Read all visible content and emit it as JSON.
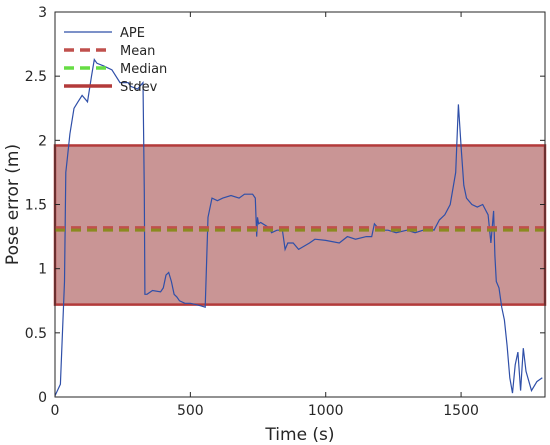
{
  "chart_data": {
    "type": "line",
    "title": "",
    "xlabel": "Time (s)",
    "ylabel": "Pose error (m)",
    "xlim": [
      0,
      1810
    ],
    "ylim": [
      0,
      3
    ],
    "xticks": [
      0,
      500,
      1000,
      1500
    ],
    "yticks": [
      0,
      0.5,
      1,
      1.5,
      2,
      2.5,
      3
    ],
    "grid": false,
    "legend_position": "top-left",
    "series": [
      {
        "name": "APE",
        "color": "#2f4fa8",
        "x": [
          0,
          20,
          35,
          40,
          45,
          55,
          70,
          85,
          100,
          120,
          135,
          145,
          155,
          180,
          210,
          240,
          250,
          270,
          280,
          305,
          325,
          330,
          332,
          340,
          360,
          390,
          400,
          410,
          420,
          430,
          440,
          450,
          460,
          480,
          500,
          520,
          540,
          555,
          565,
          580,
          600,
          620,
          650,
          680,
          700,
          730,
          740,
          745,
          748,
          752,
          760,
          790,
          800,
          820,
          840,
          850,
          860,
          880,
          900,
          940,
          960,
          1000,
          1050,
          1080,
          1110,
          1150,
          1170,
          1180,
          1200,
          1230,
          1260,
          1300,
          1330,
          1360,
          1380,
          1400,
          1420,
          1440,
          1460,
          1480,
          1490,
          1500,
          1510,
          1520,
          1540,
          1560,
          1580,
          1600,
          1610,
          1620,
          1625,
          1630,
          1640,
          1650,
          1660,
          1670,
          1680,
          1690,
          1700,
          1710,
          1720,
          1730,
          1740,
          1760,
          1780,
          1800
        ],
        "y": [
          0.01,
          0.1,
          0.9,
          1.75,
          1.85,
          2.05,
          2.25,
          2.3,
          2.35,
          2.3,
          2.5,
          2.63,
          2.6,
          2.58,
          2.55,
          2.45,
          2.45,
          2.45,
          2.42,
          2.4,
          2.45,
          1.6,
          0.8,
          0.8,
          0.83,
          0.82,
          0.85,
          0.95,
          0.97,
          0.9,
          0.8,
          0.78,
          0.75,
          0.73,
          0.73,
          0.72,
          0.71,
          0.7,
          1.4,
          1.55,
          1.53,
          1.55,
          1.57,
          1.55,
          1.58,
          1.58,
          1.55,
          1.25,
          1.4,
          1.35,
          1.36,
          1.32,
          1.28,
          1.3,
          1.3,
          1.15,
          1.2,
          1.2,
          1.15,
          1.2,
          1.23,
          1.22,
          1.2,
          1.25,
          1.23,
          1.25,
          1.25,
          1.35,
          1.3,
          1.3,
          1.28,
          1.3,
          1.28,
          1.3,
          1.32,
          1.3,
          1.38,
          1.42,
          1.5,
          1.75,
          2.28,
          1.95,
          1.65,
          1.55,
          1.5,
          1.48,
          1.5,
          1.42,
          1.2,
          1.45,
          1.1,
          0.9,
          0.85,
          0.7,
          0.6,
          0.4,
          0.15,
          0.03,
          0.25,
          0.35,
          0.05,
          0.38,
          0.2,
          0.05,
          0.12,
          0.15
        ]
      },
      {
        "name": "Mean",
        "color": "#c0504d",
        "value": 1.32
      },
      {
        "name": "Median",
        "color": "#66dd44",
        "value": 1.3
      },
      {
        "name": "Stdev",
        "color": "#b33a3a",
        "band": [
          0.72,
          1.96
        ]
      }
    ]
  }
}
